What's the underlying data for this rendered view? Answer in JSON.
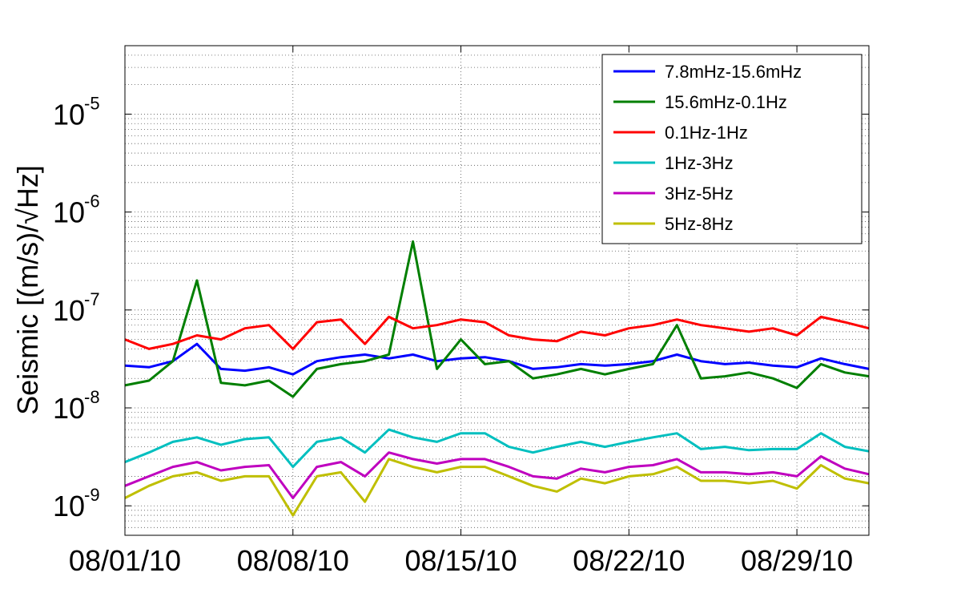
{
  "chart_data": {
    "type": "line",
    "title": "",
    "xlabel": "",
    "ylabel": "Seismic [(m/s)/√Hz]",
    "yscale": "log",
    "ylim": [
      5e-10,
      5e-05
    ],
    "xlim": [
      "2010-08-01",
      "2010-09-01"
    ],
    "x_tick_labels": [
      "08/01/10",
      "08/08/10",
      "08/15/10",
      "08/22/10",
      "08/29/10"
    ],
    "y_tick_labels": [
      {
        "base": "10",
        "exp": "-9"
      },
      {
        "base": "10",
        "exp": "-8"
      },
      {
        "base": "10",
        "exp": "-7"
      },
      {
        "base": "10",
        "exp": "-6"
      },
      {
        "base": "10",
        "exp": "-5"
      }
    ],
    "grid": true,
    "legend_position": "top-right",
    "x": [
      "2010-08-01",
      "2010-08-02",
      "2010-08-03",
      "2010-08-04",
      "2010-08-05",
      "2010-08-06",
      "2010-08-07",
      "2010-08-08",
      "2010-08-09",
      "2010-08-10",
      "2010-08-11",
      "2010-08-12",
      "2010-08-13",
      "2010-08-14",
      "2010-08-15",
      "2010-08-16",
      "2010-08-17",
      "2010-08-18",
      "2010-08-19",
      "2010-08-20",
      "2010-08-21",
      "2010-08-22",
      "2010-08-23",
      "2010-08-24",
      "2010-08-25",
      "2010-08-26",
      "2010-08-27",
      "2010-08-28",
      "2010-08-29",
      "2010-08-30",
      "2010-08-31",
      "2010-09-01"
    ],
    "series": [
      {
        "name": "7.8mHz-15.6mHz",
        "color": "#0000ff",
        "values": [
          2.7e-08,
          2.6e-08,
          3e-08,
          4.5e-08,
          2.5e-08,
          2.4e-08,
          2.6e-08,
          2.2e-08,
          3e-08,
          3.3e-08,
          3.5e-08,
          3.2e-08,
          3.5e-08,
          3e-08,
          3.2e-08,
          3.3e-08,
          3e-08,
          2.5e-08,
          2.6e-08,
          2.8e-08,
          2.7e-08,
          2.8e-08,
          3e-08,
          3.5e-08,
          3e-08,
          2.8e-08,
          2.9e-08,
          2.7e-08,
          2.6e-08,
          3.2e-08,
          2.8e-08,
          2.5e-08
        ]
      },
      {
        "name": "15.6mHz-0.1Hz",
        "color": "#007f00",
        "values": [
          1.7e-08,
          1.9e-08,
          3e-08,
          2e-07,
          1.8e-08,
          1.7e-08,
          1.9e-08,
          1.3e-08,
          2.5e-08,
          2.8e-08,
          3e-08,
          3.5e-08,
          5e-07,
          2.5e-08,
          5e-08,
          2.8e-08,
          3e-08,
          2e-08,
          2.2e-08,
          2.5e-08,
          2.2e-08,
          2.5e-08,
          2.8e-08,
          7e-08,
          2e-08,
          2.1e-08,
          2.3e-08,
          2e-08,
          1.6e-08,
          2.8e-08,
          2.3e-08,
          2.1e-08
        ]
      },
      {
        "name": "0.1Hz-1Hz",
        "color": "#ff0000",
        "values": [
          5e-08,
          4e-08,
          4.5e-08,
          5.5e-08,
          5e-08,
          6.5e-08,
          7e-08,
          4e-08,
          7.5e-08,
          8e-08,
          4.5e-08,
          8.5e-08,
          6.5e-08,
          7e-08,
          8e-08,
          7.5e-08,
          5.5e-08,
          5e-08,
          4.8e-08,
          6e-08,
          5.5e-08,
          6.5e-08,
          7e-08,
          8e-08,
          7e-08,
          6.5e-08,
          6e-08,
          6.5e-08,
          5.5e-08,
          8.5e-08,
          7.5e-08,
          6.5e-08
        ]
      },
      {
        "name": "1Hz-3Hz",
        "color": "#00bfbf",
        "values": [
          2.8e-09,
          3.5e-09,
          4.5e-09,
          5e-09,
          4.2e-09,
          4.8e-09,
          5e-09,
          2.5e-09,
          4.5e-09,
          5e-09,
          3.5e-09,
          6e-09,
          5e-09,
          4.5e-09,
          5.5e-09,
          5.5e-09,
          4e-09,
          3.5e-09,
          4e-09,
          4.5e-09,
          4e-09,
          4.5e-09,
          5e-09,
          5.5e-09,
          3.8e-09,
          4e-09,
          3.7e-09,
          3.8e-09,
          3.8e-09,
          5.5e-09,
          4e-09,
          3.6e-09
        ]
      },
      {
        "name": "3Hz-5Hz",
        "color": "#bf00bf",
        "values": [
          1.6e-09,
          2e-09,
          2.5e-09,
          2.8e-09,
          2.3e-09,
          2.5e-09,
          2.6e-09,
          1.2e-09,
          2.5e-09,
          2.8e-09,
          2e-09,
          3.5e-09,
          3e-09,
          2.7e-09,
          3e-09,
          3e-09,
          2.5e-09,
          2e-09,
          1.9e-09,
          2.4e-09,
          2.2e-09,
          2.5e-09,
          2.6e-09,
          3e-09,
          2.2e-09,
          2.2e-09,
          2.1e-09,
          2.2e-09,
          2e-09,
          3.2e-09,
          2.4e-09,
          2.1e-09
        ]
      },
      {
        "name": "5Hz-8Hz",
        "color": "#bfbf00",
        "values": [
          1.2e-09,
          1.6e-09,
          2e-09,
          2.2e-09,
          1.8e-09,
          2e-09,
          2e-09,
          8e-10,
          2e-09,
          2.2e-09,
          1.1e-09,
          3e-09,
          2.5e-09,
          2.2e-09,
          2.5e-09,
          2.5e-09,
          2e-09,
          1.6e-09,
          1.4e-09,
          1.9e-09,
          1.7e-09,
          2e-09,
          2.1e-09,
          2.5e-09,
          1.8e-09,
          1.8e-09,
          1.7e-09,
          1.8e-09,
          1.5e-09,
          2.6e-09,
          1.9e-09,
          1.7e-09
        ]
      }
    ]
  }
}
